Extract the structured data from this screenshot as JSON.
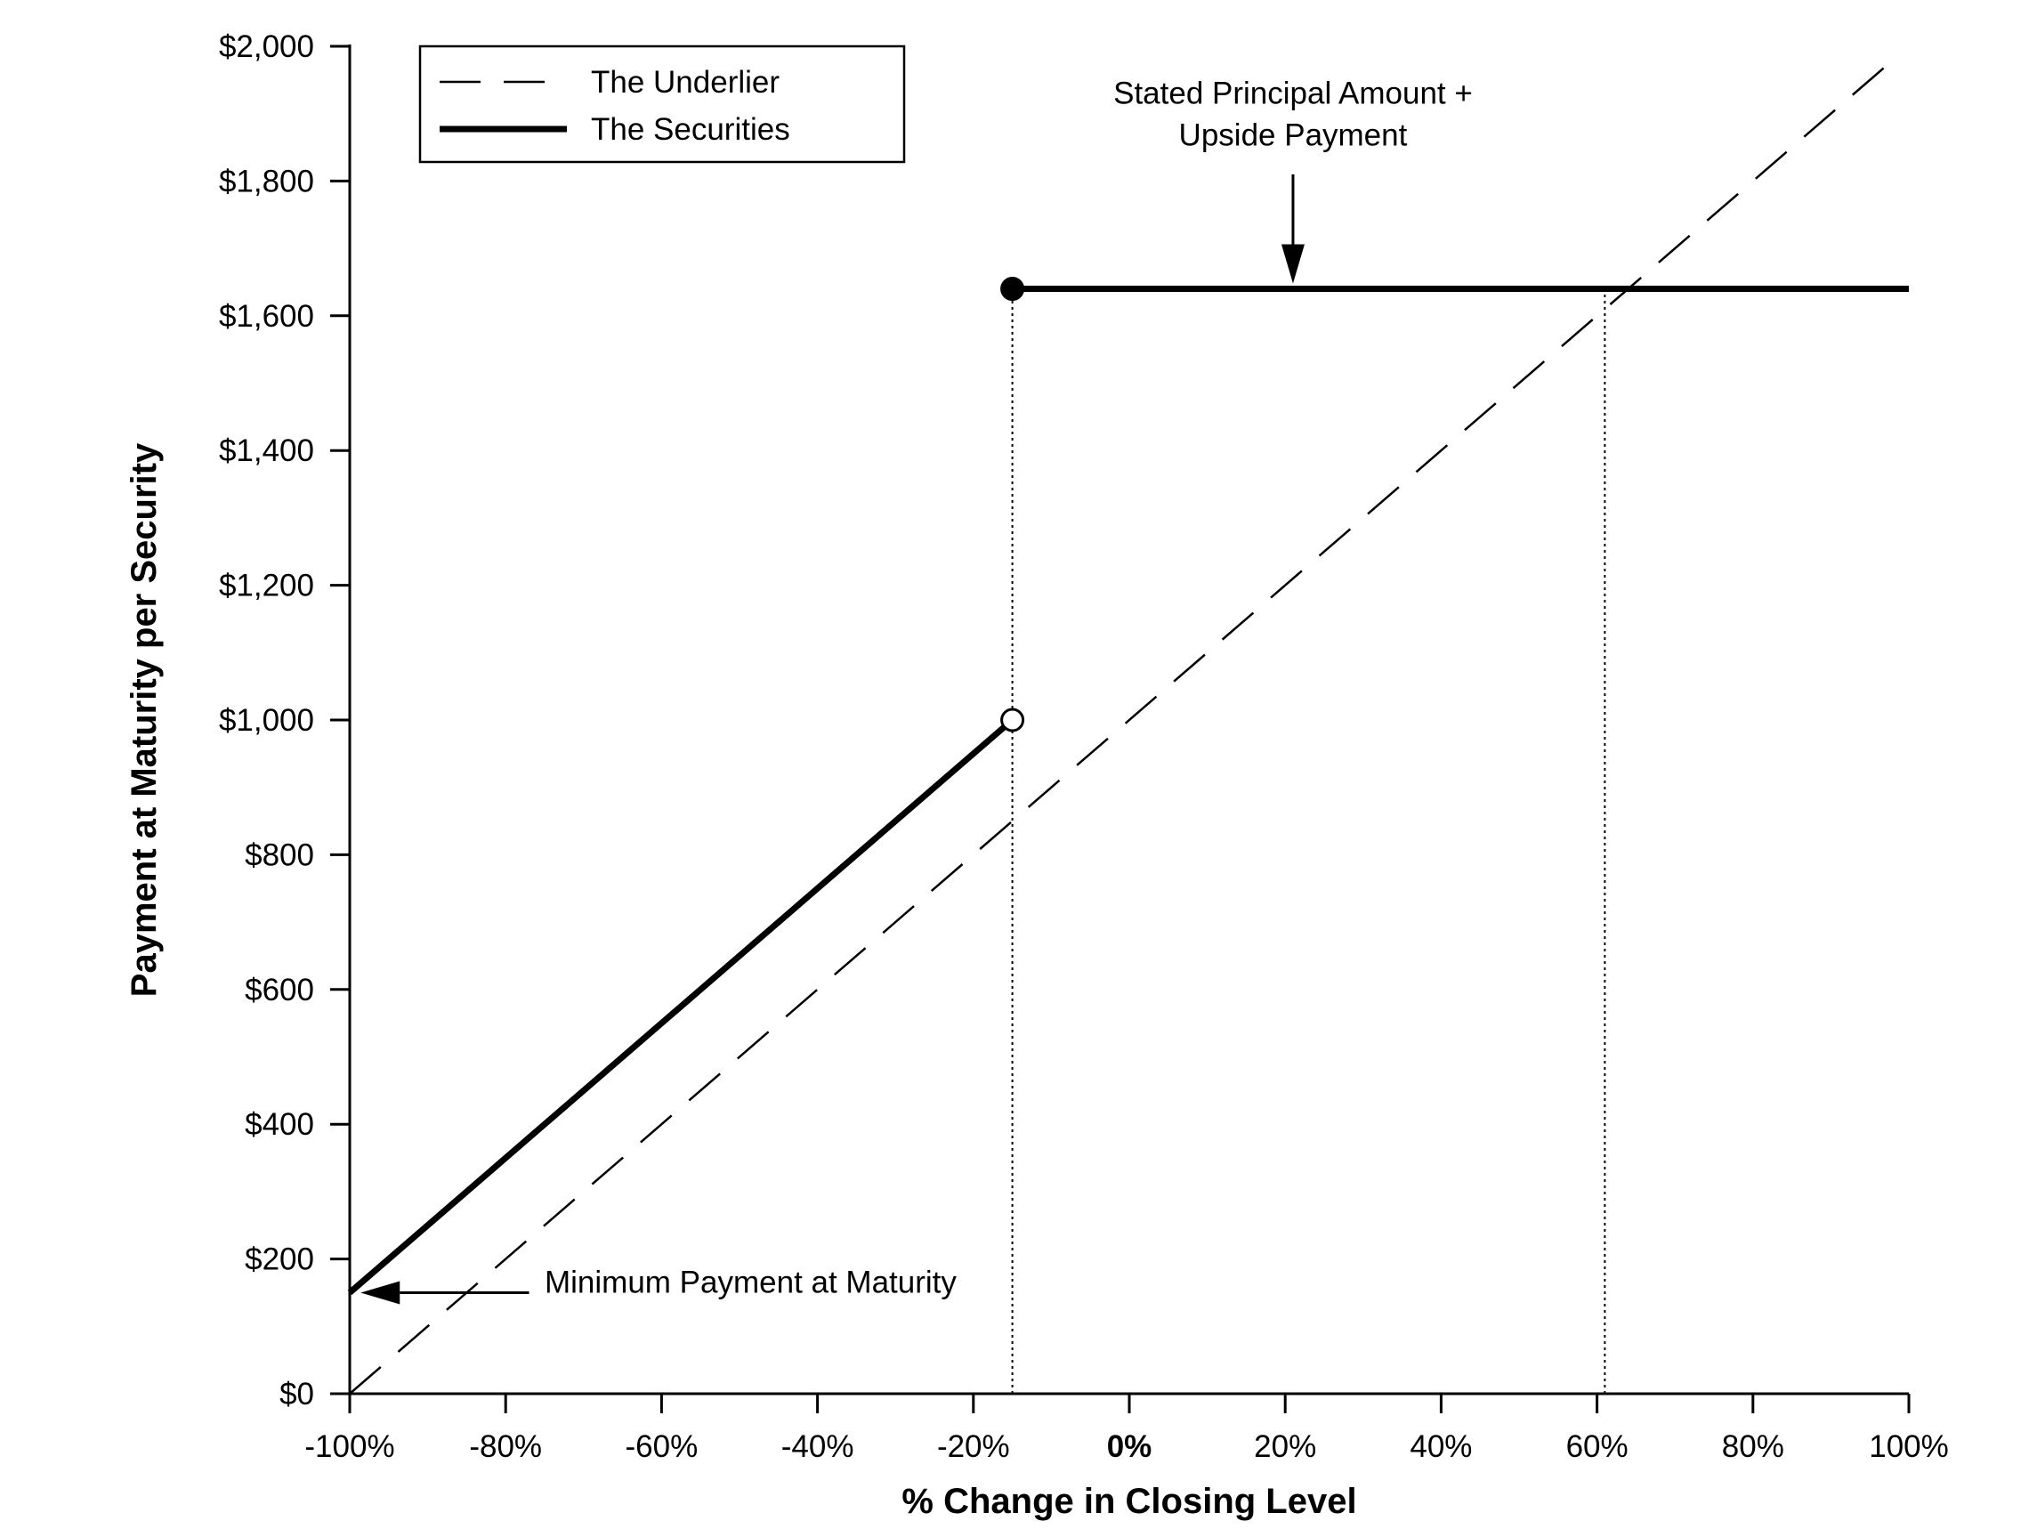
{
  "chart_data": {
    "type": "line",
    "title": "",
    "xlabel": "% Change in Closing Level",
    "ylabel": "Payment at Maturity per Security",
    "xlim": [
      -100,
      100
    ],
    "ylim": [
      0,
      2000
    ],
    "grid": false,
    "legend_position": "top-left",
    "x_ticks": [
      {
        "value": -100,
        "label": "-100%",
        "bold": false
      },
      {
        "value": -80,
        "label": "-80%",
        "bold": false
      },
      {
        "value": -60,
        "label": "-60%",
        "bold": false
      },
      {
        "value": -40,
        "label": "-40%",
        "bold": false
      },
      {
        "value": -20,
        "label": "-20%",
        "bold": false
      },
      {
        "value": 0,
        "label": "0%",
        "bold": true
      },
      {
        "value": 20,
        "label": "20%",
        "bold": false
      },
      {
        "value": 40,
        "label": "40%",
        "bold": false
      },
      {
        "value": 60,
        "label": "60%",
        "bold": false
      },
      {
        "value": 80,
        "label": "80%",
        "bold": false
      },
      {
        "value": 100,
        "label": "100%",
        "bold": false
      }
    ],
    "y_ticks": [
      {
        "value": 0,
        "label": "$0"
      },
      {
        "value": 200,
        "label": "$200"
      },
      {
        "value": 400,
        "label": "$400"
      },
      {
        "value": 600,
        "label": "$600"
      },
      {
        "value": 800,
        "label": "$800"
      },
      {
        "value": 1000,
        "label": "$1,000"
      },
      {
        "value": 1200,
        "label": "$1,200"
      },
      {
        "value": 1400,
        "label": "$1,400"
      },
      {
        "value": 1600,
        "label": "$1,600"
      },
      {
        "value": 1800,
        "label": "$1,800"
      },
      {
        "value": 2000,
        "label": "$2,000"
      }
    ],
    "series": [
      {
        "name": "The Underlier",
        "style": "dashed",
        "color": "#000000",
        "points": [
          [
            -100,
            0
          ],
          [
            97,
            1970
          ]
        ]
      },
      {
        "name": "The Securities",
        "style": "solid",
        "color": "#000000",
        "segments": [
          [
            [
              -100,
              150
            ],
            [
              -15,
              1000
            ]
          ],
          [
            [
              -15,
              1640
            ],
            [
              100,
              1640
            ]
          ]
        ],
        "markers": [
          {
            "x": -15,
            "y": 1000,
            "fill": "open"
          },
          {
            "x": -15,
            "y": 1640,
            "fill": "filled"
          }
        ]
      }
    ],
    "reference_lines": [
      {
        "x": -15,
        "y_from": 0,
        "y_to": 1640,
        "style": "dotted"
      },
      {
        "x": 61,
        "y_from": 0,
        "y_to": 1640,
        "style": "dotted"
      }
    ],
    "annotations": [
      {
        "lines": [
          "Stated Principal Amount +",
          "Upside Payment"
        ],
        "text_x": 21,
        "text_y": 1915,
        "arrow_from": [
          21,
          1810
        ],
        "arrow_to": [
          21,
          1648
        ]
      },
      {
        "lines": [
          "Minimum Payment at Maturity"
        ],
        "text_x": -75,
        "text_y": 150,
        "arrow_from": [
          -77,
          150
        ],
        "arrow_to": [
          -98.6,
          150
        ]
      }
    ]
  }
}
